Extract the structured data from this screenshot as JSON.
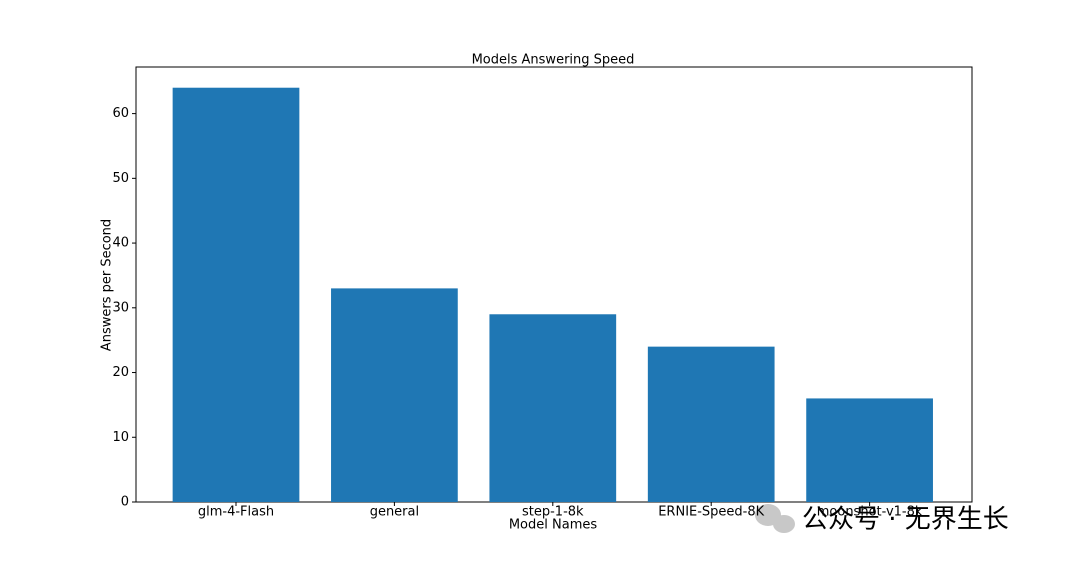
{
  "chart_data": {
    "type": "bar",
    "title": "Models Answering Speed",
    "x_label": "Model Names",
    "y_label": "Answers per Second",
    "categories": [
      "glm-4-Flash",
      "general",
      "step-1-8k",
      "ERNIE-Speed-8K",
      "moonshot-v1-8k"
    ],
    "values": [
      64,
      33,
      29,
      24,
      16
    ],
    "color": "#1f77b4",
    "ylim": [
      0,
      67.2
    ],
    "yticks": [
      0,
      10,
      20,
      30,
      40,
      50,
      60
    ],
    "grid": false
  },
  "watermark": "公众号 · 无界生长"
}
